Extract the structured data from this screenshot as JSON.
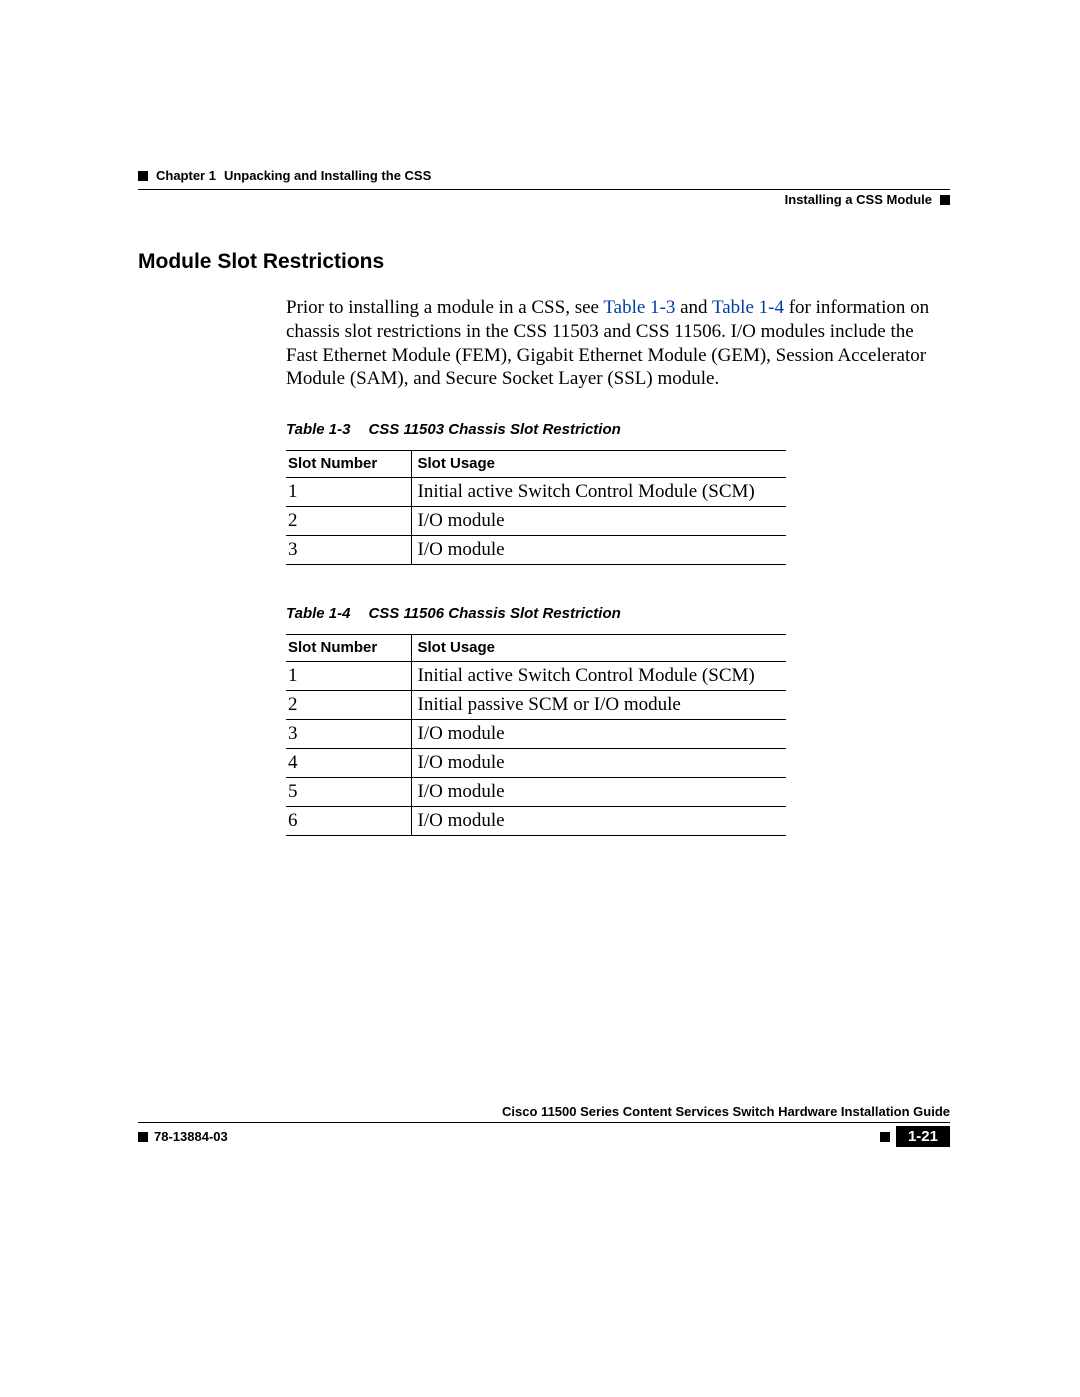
{
  "header": {
    "chapter": "Chapter 1",
    "chapter_title": "Unpacking and Installing the CSS",
    "section": "Installing a CSS Module"
  },
  "title": "Module Slot Restrictions",
  "paragraph": {
    "pre": "Prior to installing a module in a CSS, see ",
    "link1": "Table 1-3",
    "mid1": " and ",
    "link2": "Table 1-4",
    "post": " for information on chassis slot restrictions in the CSS 11503 and CSS 11506. I/O modules include the Fast Ethernet Module (FEM), Gigabit Ethernet Module (GEM), Session Accelerator Module (SAM), and Secure Socket Layer (SSL) module."
  },
  "table1": {
    "num": "Table 1-3",
    "caption": "CSS 11503 Chassis Slot Restriction",
    "col1": "Slot Number",
    "col2": "Slot Usage",
    "rows": [
      {
        "n": "1",
        "u": "Initial active Switch Control Module (SCM)"
      },
      {
        "n": "2",
        "u": "I/O module"
      },
      {
        "n": "3",
        "u": "I/O module"
      }
    ]
  },
  "table2": {
    "num": "Table 1-4",
    "caption": "CSS 11506 Chassis Slot Restriction",
    "col1": "Slot Number",
    "col2": "Slot Usage",
    "rows": [
      {
        "n": "1",
        "u": "Initial active Switch Control Module (SCM)"
      },
      {
        "n": "2",
        "u": "Initial passive SCM or I/O module"
      },
      {
        "n": "3",
        "u": "I/O module"
      },
      {
        "n": "4",
        "u": "I/O module"
      },
      {
        "n": "5",
        "u": "I/O module"
      },
      {
        "n": "6",
        "u": "I/O module"
      }
    ]
  },
  "footer": {
    "book": "Cisco 11500 Series Content Services Switch Hardware Installation Guide",
    "docnum": "78-13884-03",
    "page": "1-21"
  },
  "colors": {
    "link": "#0040a0",
    "text": "#000000",
    "bg": "#ffffff"
  }
}
